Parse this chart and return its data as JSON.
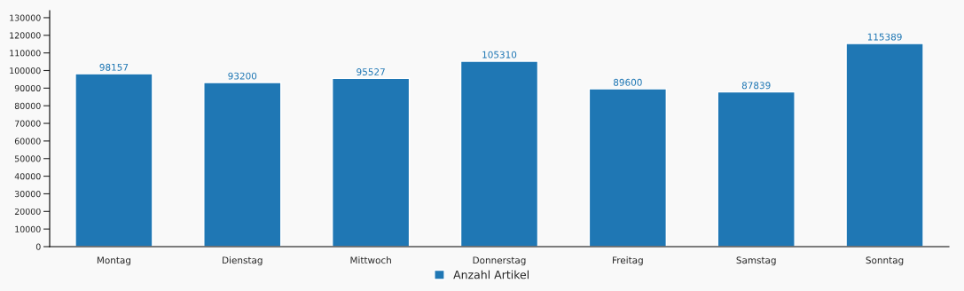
{
  "chart_data": {
    "type": "bar",
    "categories": [
      "Montag",
      "Dienstag",
      "Mittwoch",
      "Donnerstag",
      "Freitag",
      "Samstag",
      "Sonntag"
    ],
    "series": [
      {
        "name": "Anzahl Artikel",
        "color": "#1f77b4",
        "values": [
          98157,
          93200,
          95527,
          105310,
          89600,
          87839,
          115389
        ]
      }
    ],
    "ylim": [
      0,
      134000
    ],
    "yticks": [
      0,
      10000,
      20000,
      30000,
      40000,
      50000,
      60000,
      70000,
      80000,
      90000,
      100000,
      110000,
      120000,
      130000
    ],
    "data_labels": true,
    "legend": "bottom",
    "grid": false
  }
}
